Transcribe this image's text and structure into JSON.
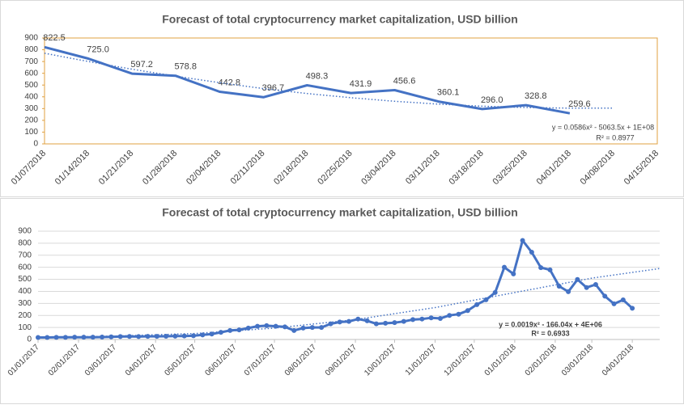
{
  "chart_data": [
    {
      "type": "line",
      "title": "Forecast of total cryptocurrency market capitalization, USD billion",
      "categories": [
        "01/07/2018",
        "01/14/2018",
        "01/21/2018",
        "01/28/2018",
        "02/04/2018",
        "02/11/2018",
        "02/18/2018",
        "02/25/2018",
        "03/04/2018",
        "03/11/2018",
        "03/18/2018",
        "03/25/2018",
        "04/01/2018",
        "04/08/2018",
        "04/15/2018"
      ],
      "ylim": [
        0,
        900
      ],
      "yticks": [
        0,
        100,
        200,
        300,
        400,
        500,
        600,
        700,
        800,
        900
      ],
      "grid": false,
      "frame_color": "#e0a040",
      "series": [
        {
          "color": "#4472c4",
          "dash": "solid",
          "values": [
            822.5,
            725.0,
            597.2,
            578.8,
            442.8,
            396.7,
            498.3,
            431.9,
            456.6,
            360.1,
            296.0,
            328.8,
            259.6,
            null,
            null
          ],
          "value_labels": [
            "822.5",
            "725.0",
            "597.2",
            "578.8",
            "442.8",
            "396.7",
            "498.3",
            "431.9",
            "456.6",
            "360.1",
            "296.0",
            "328.8",
            "259.6",
            null,
            null
          ]
        },
        {
          "color": "#4472c4",
          "dash": "dotted",
          "values": [
            770,
            700,
            635,
            575,
            520,
            470,
            428,
            392,
            362,
            338,
            320,
            309,
            304,
            304,
            null
          ]
        }
      ],
      "annotations": [
        "y = 0.0586x² - 5063.5x + 1E+08",
        "R² = 0.8977"
      ]
    },
    {
      "type": "line",
      "title": "Forecast of total cryptocurrency market capitalization, USD billion",
      "x": [
        "01/01/2017",
        "01/08/2017",
        "01/15/2017",
        "01/22/2017",
        "01/29/2017",
        "02/05/2017",
        "02/12/2017",
        "02/19/2017",
        "02/26/2017",
        "03/05/2017",
        "03/12/2017",
        "03/19/2017",
        "03/26/2017",
        "04/02/2017",
        "04/09/2017",
        "04/16/2017",
        "04/23/2017",
        "04/30/2017",
        "05/07/2017",
        "05/14/2017",
        "05/21/2017",
        "05/28/2017",
        "06/04/2017",
        "06/11/2017",
        "06/18/2017",
        "06/25/2017",
        "07/02/2017",
        "07/09/2017",
        "07/16/2017",
        "07/23/2017",
        "07/30/2017",
        "08/06/2017",
        "08/13/2017",
        "08/20/2017",
        "08/27/2017",
        "09/03/2017",
        "09/10/2017",
        "09/17/2017",
        "09/24/2017",
        "10/01/2017",
        "10/08/2017",
        "10/15/2017",
        "10/22/2017",
        "10/29/2017",
        "11/05/2017",
        "11/12/2017",
        "11/19/2017",
        "11/26/2017",
        "12/03/2017",
        "12/10/2017",
        "12/17/2017",
        "12/24/2017",
        "12/31/2017",
        "01/07/2018",
        "01/14/2018",
        "01/21/2018",
        "01/28/2018",
        "02/04/2018",
        "02/11/2018",
        "02/18/2018",
        "02/25/2018",
        "03/04/2018",
        "03/11/2018",
        "03/18/2018",
        "03/25/2018",
        "04/01/2018"
      ],
      "xlim": [
        "01/01/2017",
        "04/22/2018"
      ],
      "xticks": [
        "01/01/2017",
        "02/01/2017",
        "03/01/2017",
        "04/01/2017",
        "05/01/2017",
        "06/01/2017",
        "07/01/2017",
        "08/01/2017",
        "09/01/2017",
        "10/01/2017",
        "11/01/2017",
        "12/01/2017",
        "01/01/2018",
        "02/01/2018",
        "03/01/2018",
        "04/01/2018"
      ],
      "ylim": [
        0,
        900
      ],
      "yticks": [
        0,
        100,
        200,
        300,
        400,
        500,
        600,
        700,
        800,
        900
      ],
      "grid": true,
      "series": [
        {
          "color": "#4472c4",
          "dash": "solid",
          "markers": true,
          "values": [
            17,
            17,
            18,
            18,
            19,
            19,
            19,
            20,
            22,
            24,
            25,
            24,
            26,
            26,
            27,
            28,
            29,
            31,
            38,
            45,
            60,
            75,
            80,
            95,
            110,
            115,
            110,
            105,
            75,
            95,
            100,
            100,
            130,
            145,
            150,
            170,
            155,
            130,
            135,
            140,
            150,
            165,
            170,
            180,
            175,
            200,
            210,
            240,
            290,
            330,
            390,
            600,
            545,
            822.5,
            725.0,
            597.2,
            578.8,
            442.8,
            396.7,
            498.3,
            431.9,
            456.6,
            360.1,
            296.0,
            328.8,
            259.6
          ]
        },
        {
          "color": "#4472c4",
          "dash": "dotted",
          "x": [
            "01/01/2017",
            "03/01/2017",
            "05/01/2017",
            "07/01/2017",
            "09/01/2017",
            "11/01/2017",
            "01/01/2018",
            "03/01/2018",
            "04/22/2018"
          ],
          "values": [
            15,
            28,
            50,
            95,
            165,
            265,
            390,
            510,
            590
          ]
        }
      ],
      "annotations": [
        "y = 0.0019x² - 166.04x + 4E+06",
        "R² = 0.6933"
      ]
    }
  ]
}
